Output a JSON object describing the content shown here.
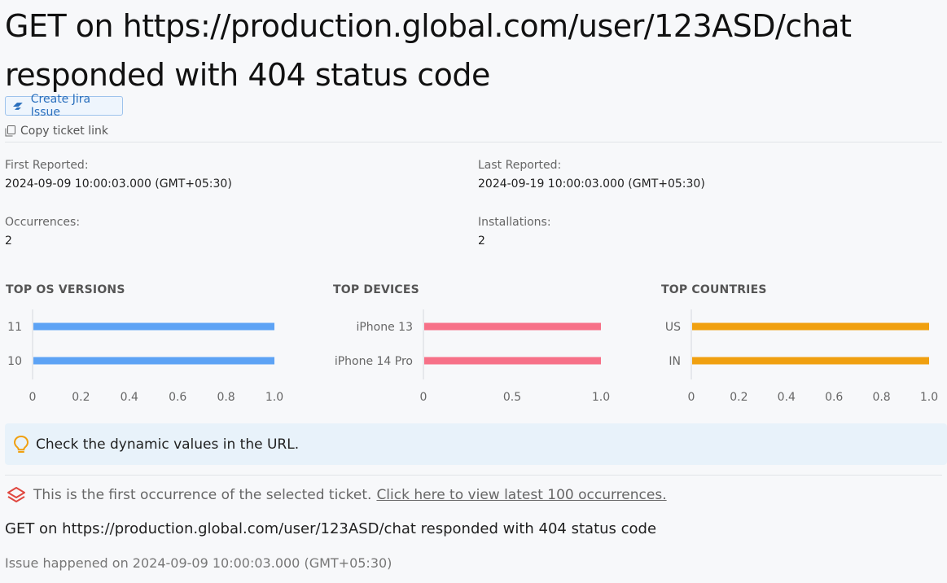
{
  "ticket": {
    "title": "GET on https://production.global.com/user/123ASD/chat responded with 404 status code",
    "create_jira_label": "Create Jira Issue",
    "copy_link_label": "Copy ticket link"
  },
  "stats": {
    "first_reported_label": "First Reported:",
    "first_reported_value": "2024-09-09 10:00:03.000 (GMT+05:30)",
    "last_reported_label": "Last Reported:",
    "last_reported_value": "2024-09-19 10:00:03.000 (GMT+05:30)",
    "occurrences_label": "Occurrences:",
    "occurrences_value": "2",
    "installations_label": "Installations:",
    "installations_value": "2"
  },
  "chart_data": [
    {
      "type": "bar",
      "orientation": "horizontal",
      "title": "TOP OS VERSIONS",
      "categories": [
        "11",
        "10"
      ],
      "values": [
        1,
        1
      ],
      "xlim": [
        0,
        1
      ],
      "ticks": [
        "0",
        "0.2",
        "0.4",
        "0.6",
        "0.8",
        "1.0"
      ],
      "color": "#5da3f5"
    },
    {
      "type": "bar",
      "orientation": "horizontal",
      "title": "TOP DEVICES",
      "categories": [
        "iPhone 13",
        "iPhone 14 Pro"
      ],
      "values": [
        1,
        1
      ],
      "xlim": [
        0,
        1
      ],
      "ticks": [
        "0",
        "0.5",
        "1.0"
      ],
      "color": "#f77188"
    },
    {
      "type": "bar",
      "orientation": "horizontal",
      "title": "TOP COUNTRIES",
      "categories": [
        "US",
        "IN"
      ],
      "values": [
        1,
        1
      ],
      "xlim": [
        0,
        1
      ],
      "ticks": [
        "0",
        "0.2",
        "0.4",
        "0.6",
        "0.8",
        "1.0"
      ],
      "color": "#f0a010"
    }
  ],
  "tip": {
    "text": "Check the dynamic values in the URL.",
    "icon": "lightbulb-icon",
    "icon_color": "#f0a010"
  },
  "occurrence": {
    "notice": "This is the first occurrence of the selected ticket.",
    "link_label": "Click here to view latest 100 occurrences.",
    "icon": "layers-icon",
    "icon_color": "#e0473f"
  },
  "event": {
    "message": "GET on https://production.global.com/user/123ASD/chat responded with 404 status code",
    "happened": "Issue happened on 2024-09-09 10:00:03.000 (GMT+05:30)"
  }
}
